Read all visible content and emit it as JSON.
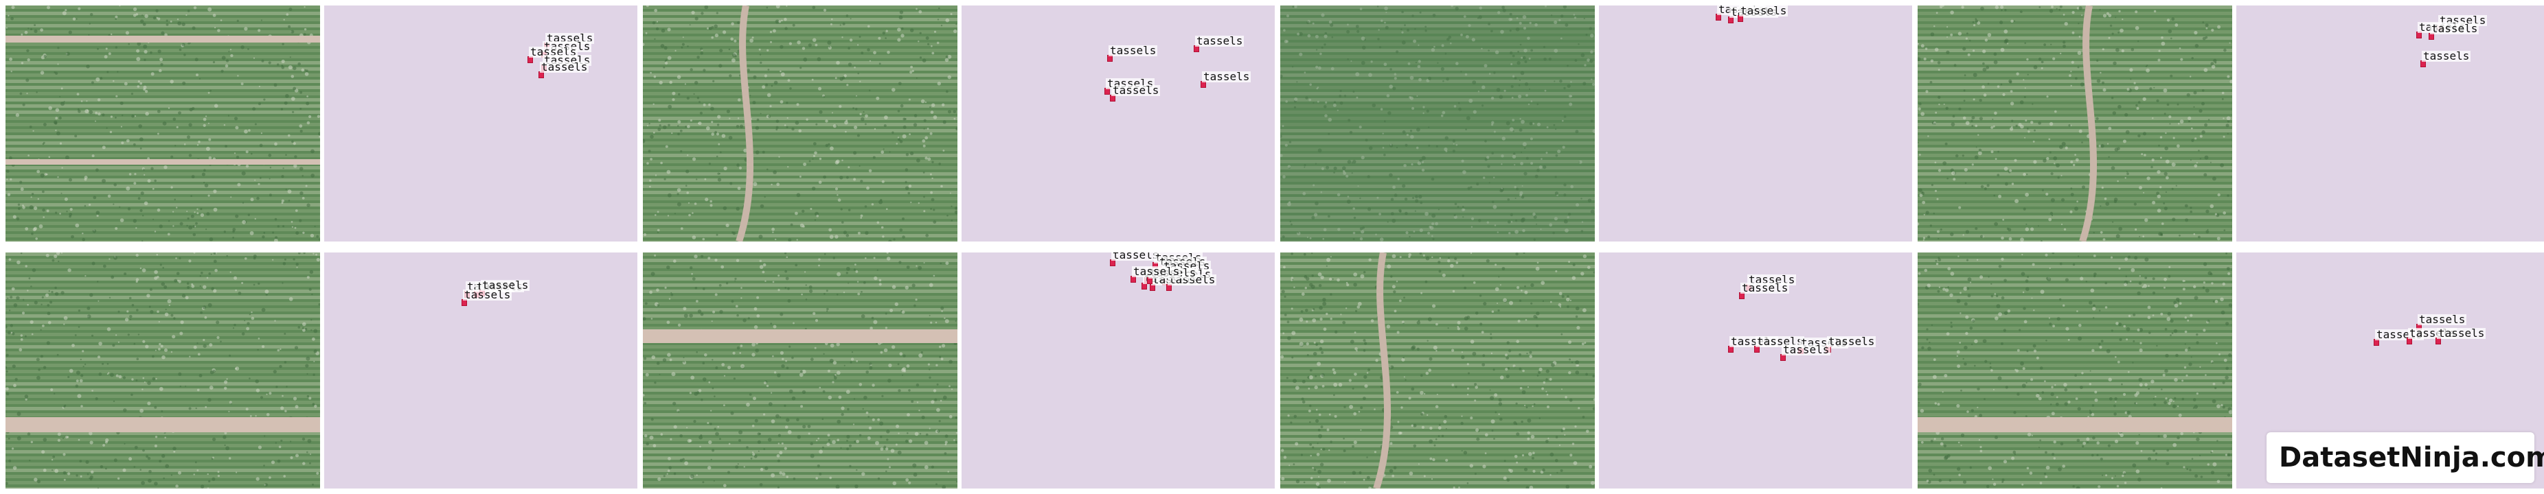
{
  "gallery": {
    "annotation_label": "tassels",
    "mask_color": "#e0d4e6",
    "box_color": "#dc2350",
    "panels": [
      {
        "id": "p1",
        "scene": "field-road-top",
        "boxes": 5
      },
      {
        "id": "p2",
        "scene": "field-gap-left",
        "boxes": 5
      },
      {
        "id": "p3",
        "scene": "dense-canopy",
        "boxes": 3
      },
      {
        "id": "p4",
        "scene": "field-gap-center",
        "boxes": 4
      },
      {
        "id": "p5",
        "scene": "field-road-bottom",
        "boxes": 4
      },
      {
        "id": "p6",
        "scene": "field-road-middle",
        "boxes": 11
      },
      {
        "id": "p7",
        "scene": "field-gap-left",
        "boxes": 7
      },
      {
        "id": "p8",
        "scene": "field-road-bottom",
        "boxes": 4
      }
    ]
  },
  "watermark": {
    "brand": "DatasetNinja.com",
    "icon": "ninja-mascot-icon"
  }
}
